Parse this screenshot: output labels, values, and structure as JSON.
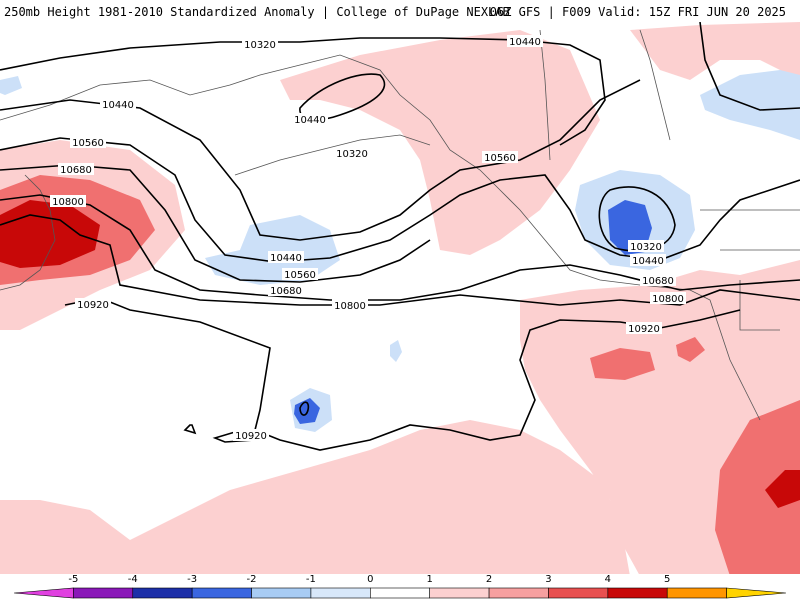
{
  "header": {
    "left": "250mb Height 1981-2010 Standardized Anomaly | College of DuPage NEXLAB",
    "right": "06Z GFS | F009 Valid: 15Z FRI JUN 20 2025"
  },
  "contour_labels": [
    "10320",
    "10440",
    "10560",
    "10680",
    "10800",
    "10920"
  ],
  "colorbar": {
    "ticks": [
      "-5",
      "-4",
      "-3",
      "-2",
      "-1",
      "0",
      "1",
      "2",
      "3",
      "4",
      "5"
    ],
    "colors": [
      "#e040e0",
      "#8a18b8",
      "#1c2fa8",
      "#3a66e0",
      "#a8ccf4",
      "#d8e8fa",
      "#ffffff",
      "#fcd0d0",
      "#f7a0a0",
      "#e85050",
      "#c80808",
      "#ff9500",
      "#ffd300"
    ]
  }
}
